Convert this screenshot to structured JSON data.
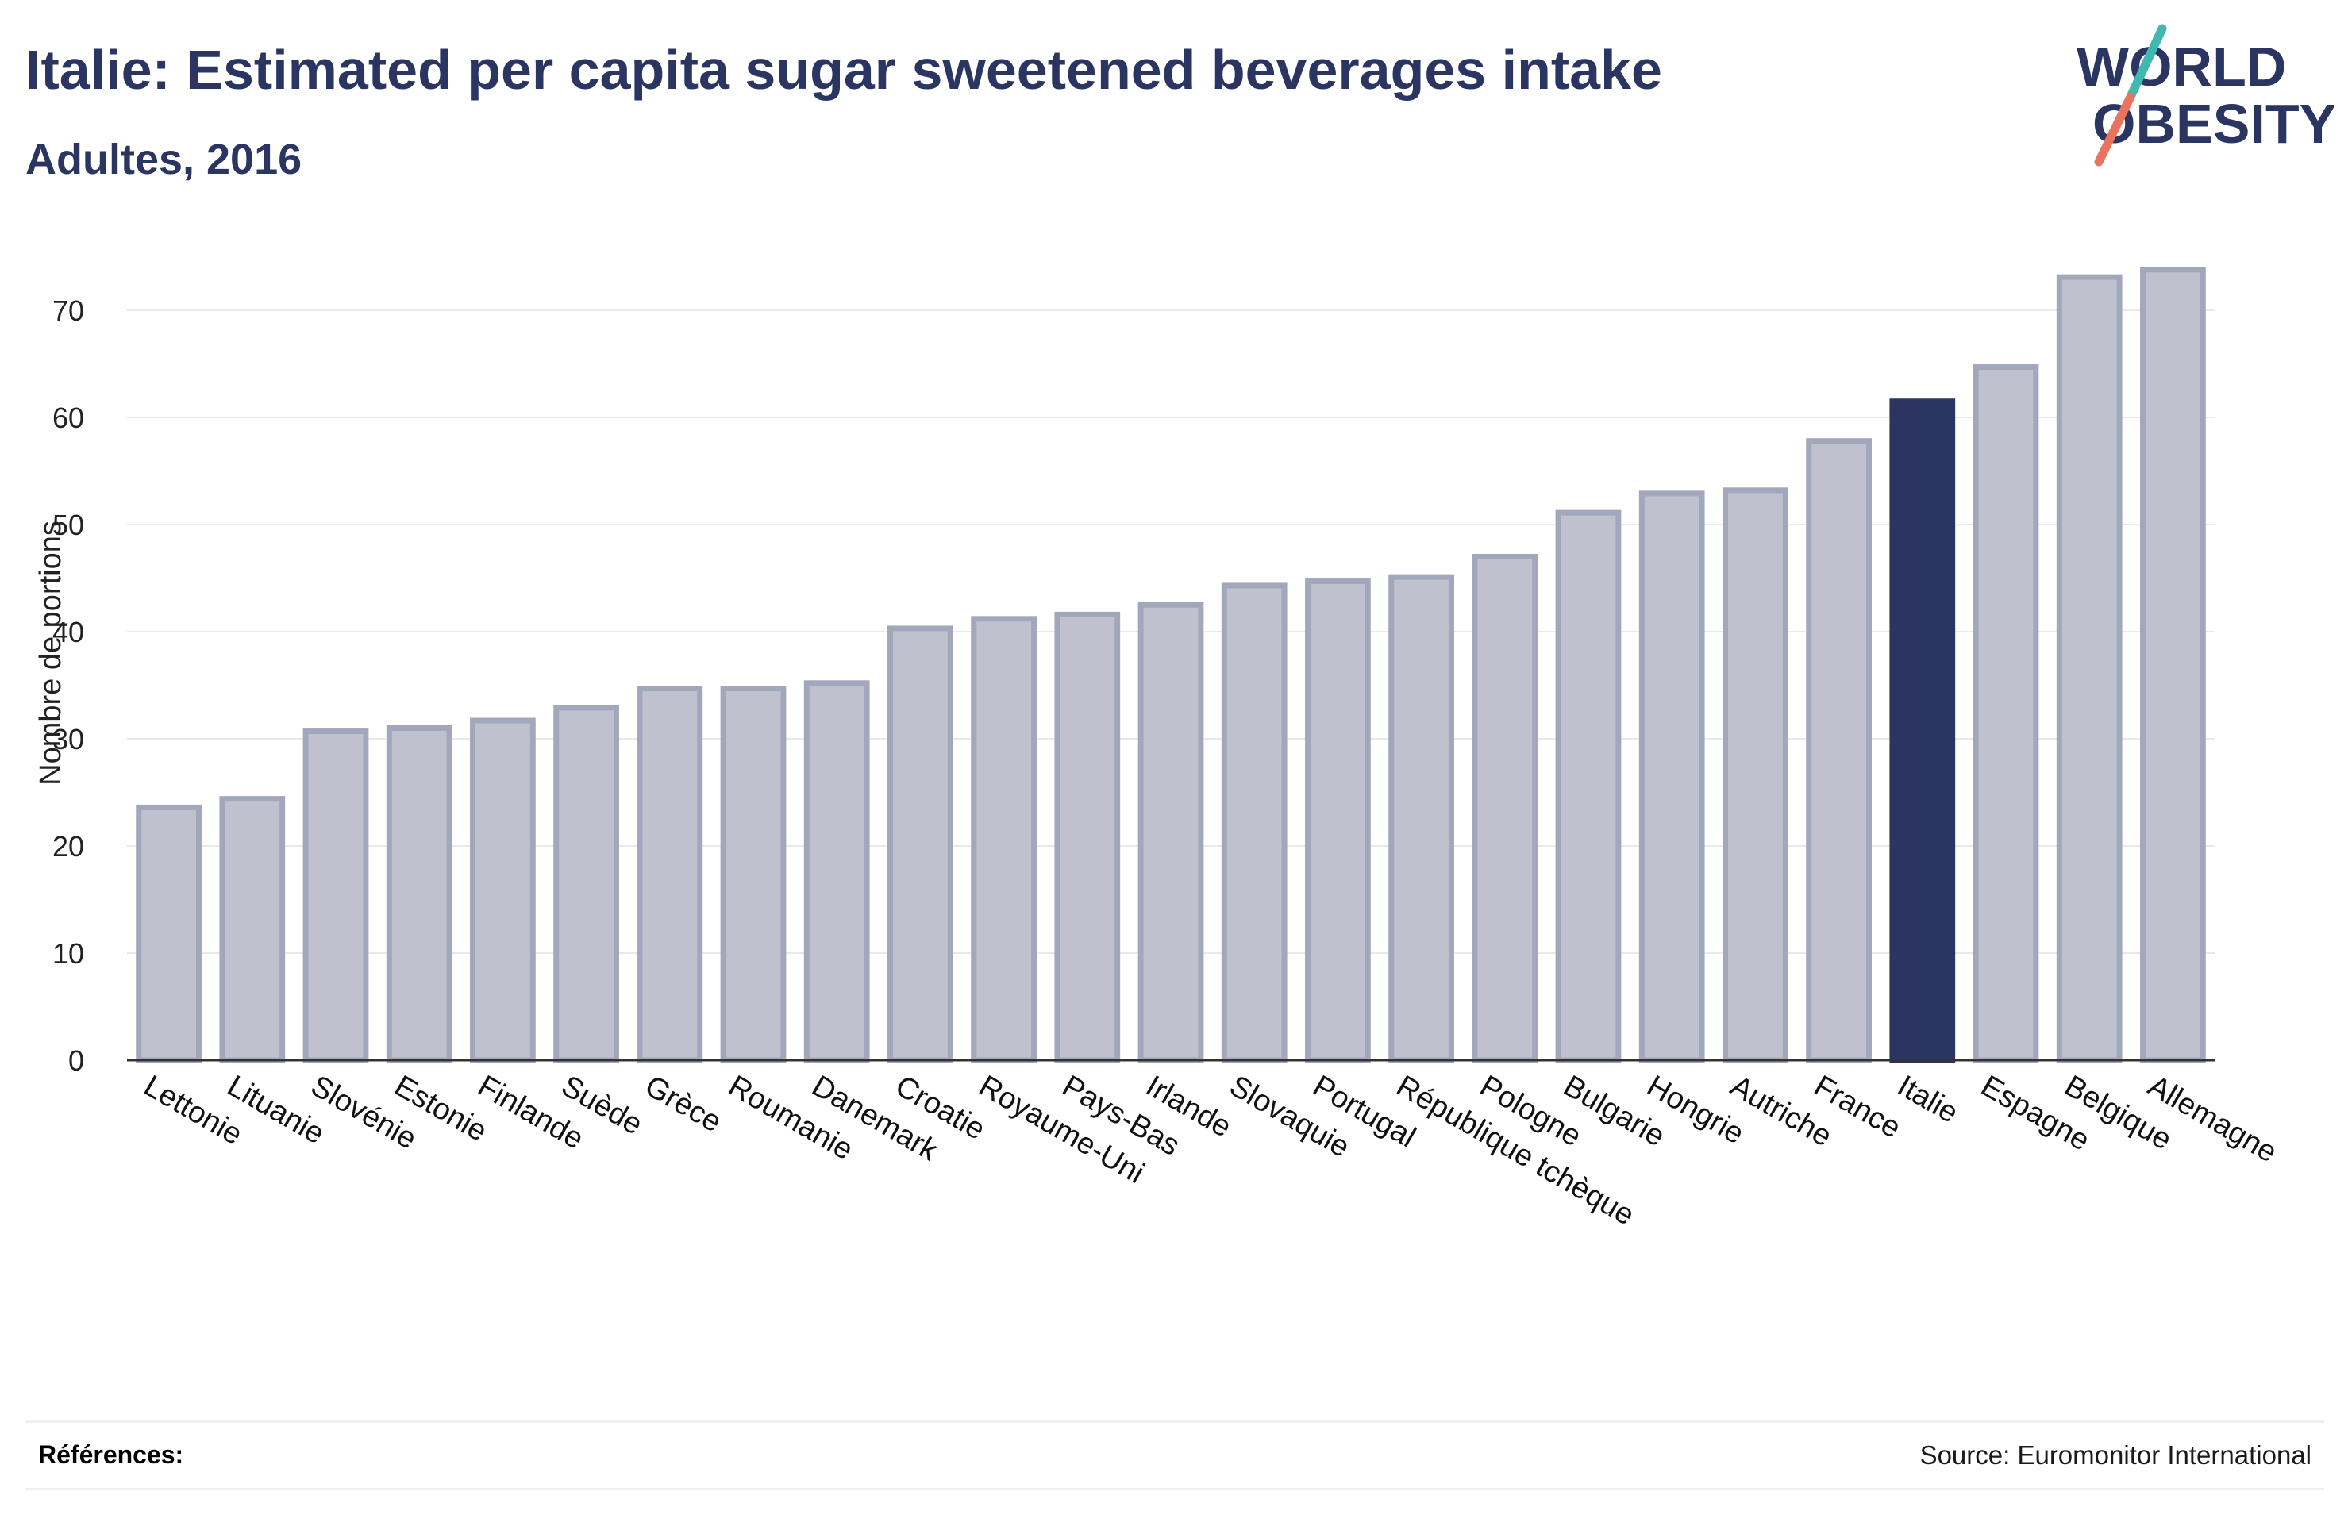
{
  "title": "Italie: Estimated per capita sugar sweetened beverages intake",
  "subtitle": "Adultes, 2016",
  "logo": {
    "line1": "WORLD",
    "line2": "OBESITY"
  },
  "footer": {
    "references_label": "Références:",
    "source": "Source: Euromonitor International"
  },
  "colors": {
    "title": "#2a3561",
    "bar_fill": "#bfc2ce",
    "bar_stroke": "#a3a7bb",
    "highlight": "#2a3561",
    "grid": "#e8e9ee",
    "logo_teal": "#3fb9b0",
    "logo_coral": "#e8735f"
  },
  "chart_data": {
    "type": "bar",
    "title": "Italie: Estimated per capita sugar sweetened beverages intake",
    "subtitle": "Adultes, 2016",
    "xlabel": "",
    "ylabel": "Nombre de portions",
    "ylim": [
      0,
      76
    ],
    "yticks": [
      0,
      10,
      20,
      30,
      40,
      50,
      60,
      70
    ],
    "grid": true,
    "highlight": "Italie",
    "categories": [
      "Lettonie",
      "Lituanie",
      "Slovénie",
      "Estonie",
      "Finlande",
      "Suède",
      "Grèce",
      "Roumanie",
      "Danemark",
      "Croatie",
      "Royaume-Uni",
      "Pays-Bas",
      "Irlande",
      "Slovaquie",
      "Portugal",
      "République tchèque",
      "Pologne",
      "Bulgarie",
      "Hongrie",
      "Autriche",
      "France",
      "Italie",
      "Espagne",
      "Belgique",
      "Allemagne"
    ],
    "values": [
      23.6,
      24.4,
      30.7,
      31.0,
      31.7,
      32.9,
      34.7,
      34.7,
      35.2,
      40.3,
      41.2,
      41.6,
      42.5,
      44.3,
      44.7,
      45.1,
      47.0,
      51.1,
      52.9,
      53.2,
      57.8,
      61.5,
      64.7,
      73.1,
      73.8
    ]
  }
}
